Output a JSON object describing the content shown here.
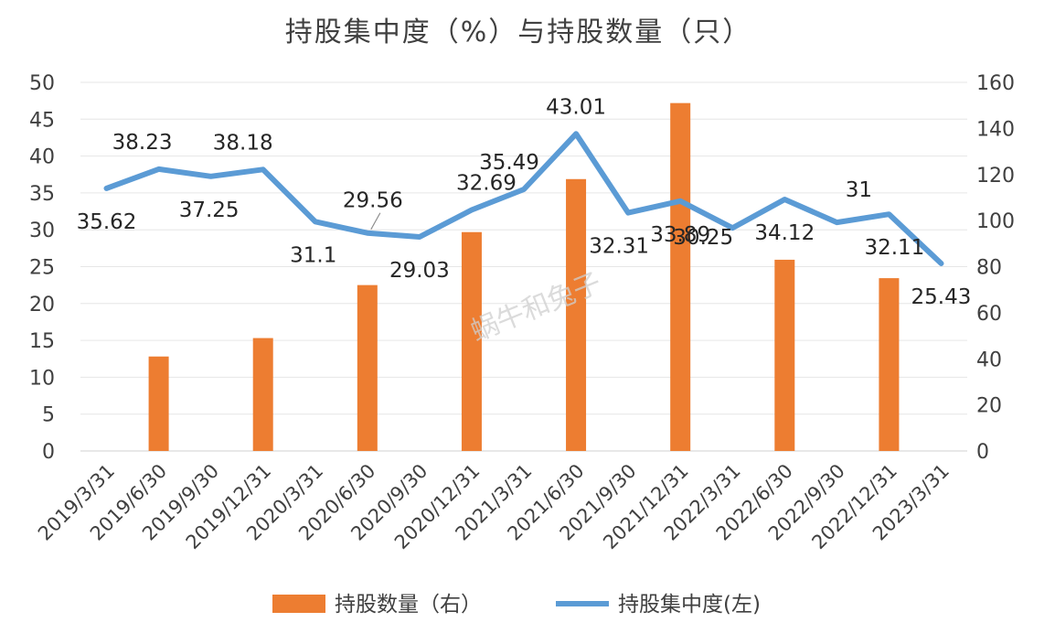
{
  "chart_data": {
    "type": "bar+line",
    "title": "持股集中度（%）与持股数量（只）",
    "categories": [
      "2019/3/31",
      "2019/6/30",
      "2019/9/30",
      "2019/12/31",
      "2020/3/31",
      "2020/6/30",
      "2020/9/30",
      "2020/12/31",
      "2021/3/31",
      "2021/6/30",
      "2021/9/30",
      "2021/12/31",
      "2022/3/31",
      "2022/6/30",
      "2022/9/30",
      "2022/12/31",
      "2023/3/31"
    ],
    "series": [
      {
        "name": "持股数量（右）",
        "type": "bar",
        "axis": "right",
        "color": "#ED7D31",
        "values": [
          null,
          41,
          null,
          49,
          null,
          72,
          null,
          95,
          null,
          118,
          null,
          151,
          null,
          83,
          null,
          75,
          null
        ]
      },
      {
        "name": "持股集中度(左)",
        "type": "line",
        "axis": "left",
        "color": "#5B9BD5",
        "values": [
          35.62,
          38.23,
          37.25,
          38.18,
          31.1,
          29.56,
          29.03,
          32.69,
          35.49,
          43.01,
          32.31,
          33.89,
          30.25,
          34.12,
          31,
          32.11,
          25.43
        ],
        "labels": [
          "35.62",
          "38.23",
          "37.25",
          "38.18",
          "31.1",
          "29.56",
          "29.03",
          "32.69",
          "35.49",
          "43.01",
          "32.31",
          "33.89",
          "30.25",
          "34.12",
          "31",
          "32.11",
          "25.43"
        ]
      }
    ],
    "left_axis": {
      "min": 0,
      "max": 50,
      "step": 5
    },
    "right_axis": {
      "min": 0,
      "max": 160,
      "step": 20
    },
    "grid": true,
    "legend_position": "bottom"
  },
  "watermark": "蜗牛和兔子"
}
